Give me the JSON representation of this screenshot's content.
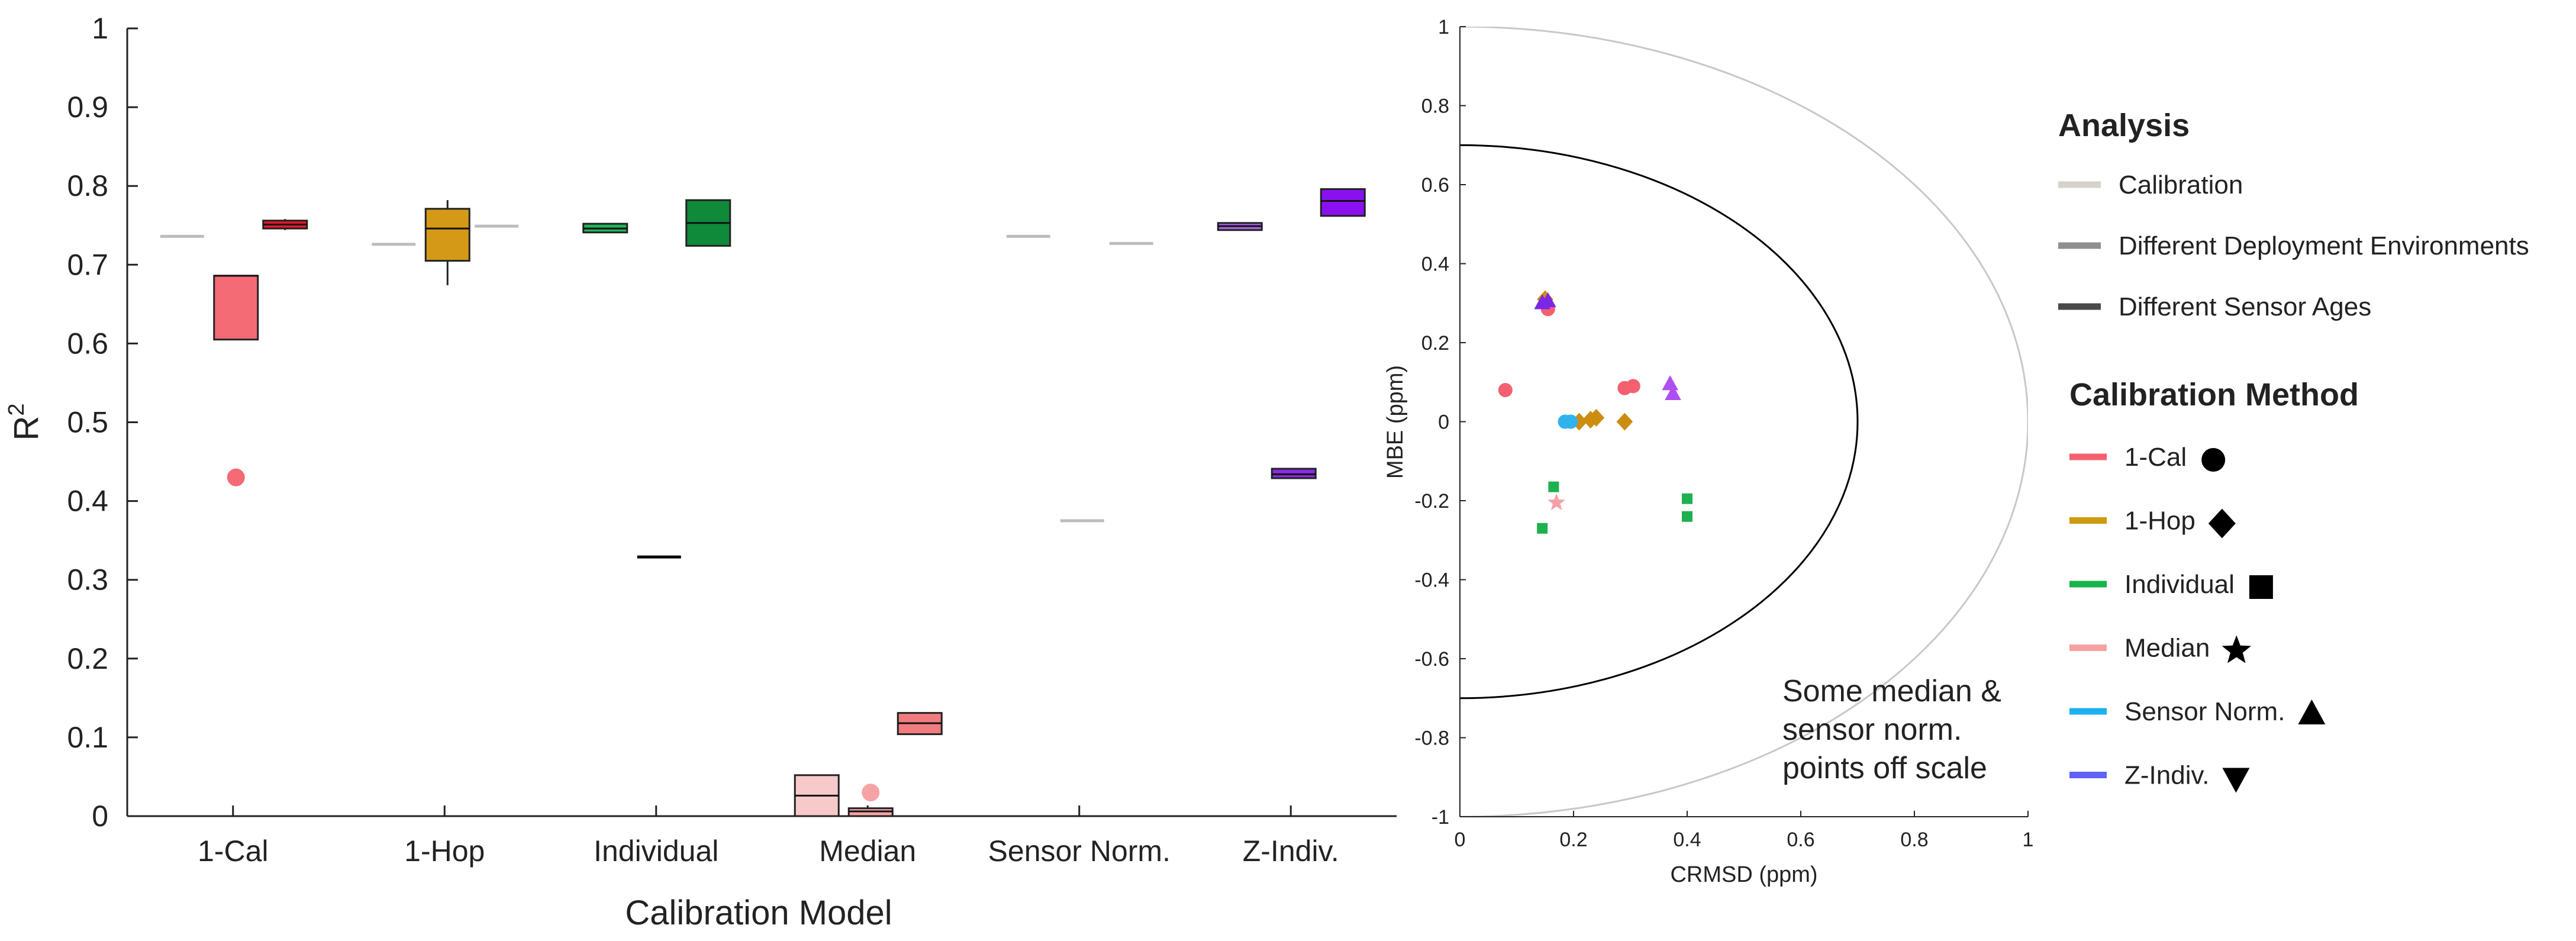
{
  "chart_data": [
    {
      "type": "box",
      "title": "",
      "xlabel": "Calibration Model",
      "ylabel": "R",
      "ylabel_superscript": "2",
      "ylim": [
        0,
        1
      ],
      "yticks": [
        "0",
        "0.1",
        "0.2",
        "0.3",
        "0.4",
        "0.5",
        "0.6",
        "0.7",
        "0.8",
        "0.9",
        "1"
      ],
      "categories": [
        "1-Cal",
        "1-Hop",
        "Individual",
        "Median",
        "Sensor Norm.",
        "Z-Indiv."
      ],
      "series": [
        "Calibration",
        "Different Deployment Environments",
        "Different Sensor Ages"
      ],
      "boxes": [
        {
          "category": 0,
          "slot": 0,
          "q1": 0.736,
          "median": 0.736,
          "q3": 0.736,
          "whisker_low": 0.736,
          "whisker_high": 0.736,
          "color": "#bdbdbd"
        },
        {
          "category": 0,
          "slot": 1,
          "q1": 0.605,
          "median": 0.686,
          "q3": 0.686,
          "whisker_low": 0.605,
          "whisker_high": 0.686,
          "color": "#f46a75",
          "outliers": [
            0.43
          ]
        },
        {
          "category": 0,
          "slot": 2,
          "q1": 0.746,
          "median": 0.751,
          "q3": 0.756,
          "whisker_low": 0.744,
          "whisker_high": 0.758,
          "color": "#e8182c"
        },
        {
          "category": 1,
          "slot": 0,
          "q1": 0.726,
          "median": 0.726,
          "q3": 0.726,
          "whisker_low": 0.726,
          "whisker_high": 0.726,
          "color": "#bdbdbd"
        },
        {
          "category": 1,
          "slot": 1,
          "q1": 0.705,
          "median": 0.746,
          "q3": 0.771,
          "whisker_low": 0.674,
          "whisker_high": 0.782,
          "color": "#d49a17"
        },
        {
          "category": 1,
          "slot": 2,
          "q1": 0.749,
          "median": 0.749,
          "q3": 0.749,
          "whisker_low": 0.749,
          "whisker_high": 0.749,
          "color": "#bdbdbd"
        },
        {
          "category": 2,
          "slot": 0,
          "q1": 0.741,
          "median": 0.746,
          "q3": 0.752,
          "whisker_low": 0.741,
          "whisker_high": 0.752,
          "color": "#22b55a"
        },
        {
          "category": 2,
          "slot": 1,
          "q1": 0.329,
          "median": 0.329,
          "q3": 0.329,
          "whisker_low": 0.329,
          "whisker_high": 0.329,
          "color": "#000000"
        },
        {
          "category": 2,
          "slot": 2,
          "q1": 0.724,
          "median": 0.753,
          "q3": 0.782,
          "whisker_low": 0.724,
          "whisker_high": 0.782,
          "color": "#0e8a3a"
        },
        {
          "category": 3,
          "slot": 0,
          "q1": 0.0,
          "median": 0.026,
          "q3": 0.052,
          "whisker_low": 0.0,
          "whisker_high": 0.052,
          "color": "#f7c9cb"
        },
        {
          "category": 3,
          "slot": 1,
          "q1": 0.0,
          "median": 0.006,
          "q3": 0.01,
          "whisker_low": 0.0,
          "whisker_high": 0.01,
          "color": "#f6a3a6",
          "outliers": [
            0.03
          ]
        },
        {
          "category": 3,
          "slot": 2,
          "q1": 0.104,
          "median": 0.118,
          "q3": 0.131,
          "whisker_low": 0.104,
          "whisker_high": 0.131,
          "color": "#f07c80"
        },
        {
          "category": 4,
          "slot": 0,
          "q1": 0.736,
          "median": 0.736,
          "q3": 0.736,
          "whisker_low": 0.736,
          "whisker_high": 0.736,
          "color": "#bdbdbd"
        },
        {
          "category": 4,
          "slot": 1,
          "q1": 0.375,
          "median": 0.375,
          "q3": 0.375,
          "whisker_low": 0.375,
          "whisker_high": 0.375,
          "color": "#bdbdbd"
        },
        {
          "category": 4,
          "slot": 2,
          "q1": 0.727,
          "median": 0.727,
          "q3": 0.727,
          "whisker_low": 0.727,
          "whisker_high": 0.727,
          "color": "#bdbdbd"
        },
        {
          "category": 5,
          "slot": 0,
          "q1": 0.744,
          "median": 0.749,
          "q3": 0.753,
          "whisker_low": 0.744,
          "whisker_high": 0.753,
          "color": "#a463e0"
        },
        {
          "category": 5,
          "slot": 1,
          "q1": 0.429,
          "median": 0.434,
          "q3": 0.441,
          "whisker_low": 0.429,
          "whisker_high": 0.441,
          "color": "#8a2be2"
        },
        {
          "category": 5,
          "slot": 2,
          "q1": 0.762,
          "median": 0.781,
          "q3": 0.796,
          "whisker_low": 0.762,
          "whisker_high": 0.796,
          "color": "#8b10f0"
        }
      ]
    },
    {
      "type": "scatter",
      "subtype": "target diagram",
      "xlabel": "CRMSD (ppm)",
      "ylabel": "MBE (ppm)",
      "xlim": [
        0,
        1
      ],
      "ylim": [
        -1,
        1
      ],
      "xticks": [
        "0",
        "0.2",
        "0.4",
        "0.6",
        "0.8",
        "1"
      ],
      "yticks": [
        "-1",
        "-0.8",
        "-0.6",
        "-0.4",
        "-0.2",
        "0",
        "0.2",
        "0.4",
        "0.6",
        "0.8",
        "1"
      ],
      "circles": [
        {
          "radius": 0.7,
          "color": "#000000"
        },
        {
          "radius": 1.0,
          "color": "#c8c8c8"
        }
      ],
      "points": [
        {
          "x": 0.08,
          "y": 0.08,
          "method": "1-Cal",
          "marker": "circle",
          "color": "#f4606f"
        },
        {
          "x": 0.155,
          "y": 0.285,
          "method": "1-Cal",
          "marker": "circle",
          "color": "#f4606f"
        },
        {
          "x": 0.29,
          "y": 0.085,
          "method": "1-Cal",
          "marker": "circle",
          "color": "#f4606f"
        },
        {
          "x": 0.305,
          "y": 0.09,
          "method": "1-Cal",
          "marker": "circle",
          "color": "#f4606f"
        },
        {
          "x": 0.15,
          "y": 0.31,
          "method": "1-Hop",
          "marker": "diamond",
          "color": "#cc8d0e"
        },
        {
          "x": 0.21,
          "y": 0.0,
          "method": "1-Hop",
          "marker": "diamond",
          "color": "#cc8d0e"
        },
        {
          "x": 0.23,
          "y": 0.005,
          "method": "1-Hop",
          "marker": "diamond",
          "color": "#cc8d0e"
        },
        {
          "x": 0.24,
          "y": 0.01,
          "method": "1-Hop",
          "marker": "diamond",
          "color": "#cc8d0e"
        },
        {
          "x": 0.29,
          "y": 0.0,
          "method": "1-Hop",
          "marker": "diamond",
          "color": "#cc8d0e"
        },
        {
          "x": 0.165,
          "y": -0.165,
          "method": "Individual",
          "marker": "square",
          "color": "#1fb04f"
        },
        {
          "x": 0.145,
          "y": -0.27,
          "method": "Individual",
          "marker": "square",
          "color": "#1fb04f"
        },
        {
          "x": 0.4,
          "y": -0.195,
          "method": "Individual",
          "marker": "square",
          "color": "#1fb04f"
        },
        {
          "x": 0.4,
          "y": -0.24,
          "method": "Individual",
          "marker": "square",
          "color": "#1fb04f"
        },
        {
          "x": 0.17,
          "y": -0.205,
          "method": "Median",
          "marker": "star",
          "color": "#f3a1a8"
        },
        {
          "x": 0.185,
          "y": 0.0,
          "method": "Sensor Norm.",
          "marker": "circle",
          "color": "#2fb3ee"
        },
        {
          "x": 0.195,
          "y": 0.0,
          "method": "Sensor Norm.",
          "marker": "circle",
          "color": "#2fb3ee"
        },
        {
          "x": 0.145,
          "y": 0.3,
          "method": "Z-Indiv.",
          "marker": "triangle-up",
          "color": "#7b27e6"
        },
        {
          "x": 0.155,
          "y": 0.305,
          "method": "Z-Indiv.",
          "marker": "triangle-up",
          "color": "#7b27e6"
        },
        {
          "x": 0.37,
          "y": 0.095,
          "method": "Z-Indiv.",
          "marker": "triangle-up",
          "color": "#b04ef2"
        },
        {
          "x": 0.375,
          "y": 0.07,
          "method": "Z-Indiv.",
          "marker": "triangle-up",
          "color": "#b04ef2"
        }
      ],
      "annotation": [
        "Some median &",
        "sensor norm.",
        "points off scale"
      ]
    }
  ],
  "legend": {
    "analysis_title": "Analysis",
    "analysis_items": [
      {
        "label": "Calibration",
        "color": "#d5d2cc"
      },
      {
        "label": "Different Deployment Environments",
        "color": "#8e8e8e"
      },
      {
        "label": "Different Sensor Ages",
        "color": "#4a4a4a"
      }
    ],
    "method_title": "Calibration Method",
    "method_items": [
      {
        "label": "1-Cal",
        "color": "#f4606f",
        "marker": "circle"
      },
      {
        "label": "1-Hop",
        "color": "#cc9a0e",
        "marker": "diamond"
      },
      {
        "label": "Individual",
        "color": "#16b44a",
        "marker": "square"
      },
      {
        "label": "Median",
        "color": "#f7a0a4",
        "marker": "star"
      },
      {
        "label": "Sensor Norm.",
        "color": "#1cb0f0",
        "marker": "triangle-up"
      },
      {
        "label": "Z-Indiv.",
        "color": "#5f62f3",
        "marker": "triangle-down"
      }
    ]
  }
}
